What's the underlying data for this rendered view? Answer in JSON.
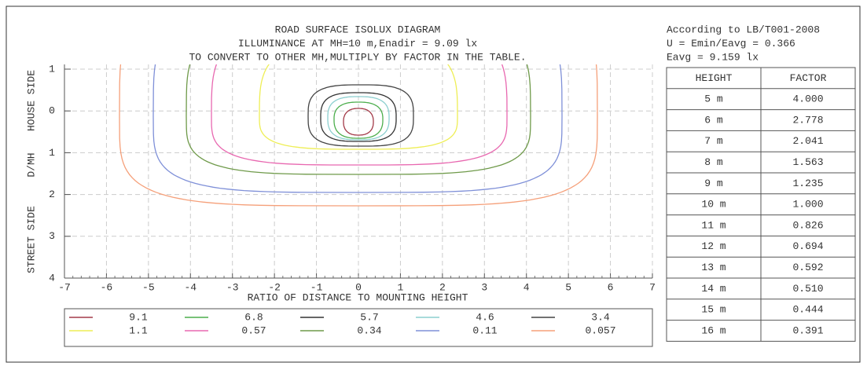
{
  "title_lines": [
    "ROAD SURFACE ISOLUX DIAGRAM",
    "ILLUMINANCE AT MH=10 m,Enadir  = 9.09 lx",
    "TO CONVERT TO OTHER MH,MULTIPLY BY FACTOR IN THE TABLE."
  ],
  "info_lines": [
    "According to LB/T001-2008",
    "U = Emin/Eavg = 0.366",
    "Eavg = 9.159 lx"
  ],
  "y_axis_labels": [
    "HOUSE SIDE",
    "D/MH",
    "STREET SIDE"
  ],
  "x_axis_label": "RATIO OF DISTANCE TO MOUNTING HEIGHT",
  "xlim": [
    -7,
    7
  ],
  "xticks": [
    -7,
    -6,
    -5,
    -4,
    -3,
    -2,
    -1,
    0,
    1,
    2,
    3,
    4,
    5,
    6,
    7
  ],
  "ylim": [
    -1,
    4
  ],
  "yticks": [
    {
      "value": -1,
      "label": "1"
    },
    0,
    1,
    2,
    3,
    4
  ],
  "grid": true,
  "legend": [
    {
      "value": 9.1,
      "color": "#a33a48"
    },
    {
      "value": 6.8,
      "color": "#4cae4c"
    },
    {
      "value": 5.7,
      "color": "#333333"
    },
    {
      "value": 4.6,
      "color": "#8ccfcf"
    },
    {
      "value": 3.4,
      "color": "#444444"
    },
    {
      "value": 1.1,
      "color": "#eeee55"
    },
    {
      "value": 0.57,
      "color": "#e868b0"
    },
    {
      "value": 0.34,
      "color": "#6f9a4a"
    },
    {
      "value": 0.11,
      "color": "#7f90d8"
    },
    {
      "value": 0.057,
      "color": "#f5a07a"
    }
  ],
  "table": {
    "header": [
      "HEIGHT",
      "FACTOR"
    ],
    "rows": [
      [
        "5 m",
        "4.000"
      ],
      [
        "6 m",
        "2.778"
      ],
      [
        "7 m",
        "2.041"
      ],
      [
        "8 m",
        "1.563"
      ],
      [
        "9 m",
        "1.235"
      ],
      [
        "10 m",
        "1.000"
      ],
      [
        "11 m",
        "0.826"
      ],
      [
        "12 m",
        "0.694"
      ],
      [
        "13 m",
        "0.592"
      ],
      [
        "14 m",
        "0.510"
      ],
      [
        "15 m",
        "0.444"
      ],
      [
        "16 m",
        "0.391"
      ]
    ]
  }
}
